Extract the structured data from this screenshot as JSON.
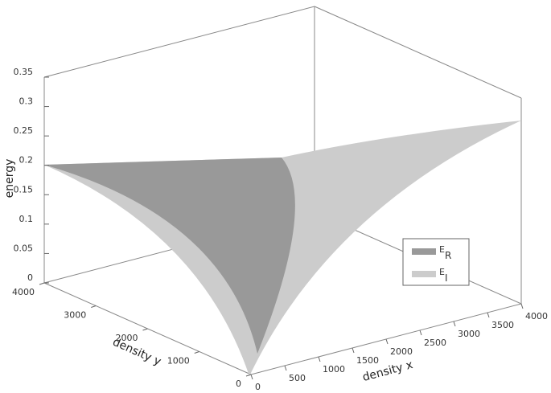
{
  "chart_data": {
    "type": "surface",
    "xlabel": "density x",
    "ylabel": "density y",
    "zlabel": "energy",
    "xlim": [
      0,
      4000
    ],
    "xticks": [
      0,
      500,
      1000,
      1500,
      2000,
      2500,
      3000,
      3500,
      4000
    ],
    "ylim": [
      0,
      4000
    ],
    "yticks": [
      0,
      1000,
      2000,
      3000,
      4000
    ],
    "zlim": [
      0,
      0.35
    ],
    "zticks": [
      0,
      0.05,
      0.1,
      0.15,
      0.2,
      0.25,
      0.3,
      0.35
    ],
    "series": [
      {
        "name": "E",
        "subscript": "R",
        "color": "#999999"
      },
      {
        "name": "E",
        "subscript": "I",
        "color": "#cccccc"
      }
    ]
  }
}
